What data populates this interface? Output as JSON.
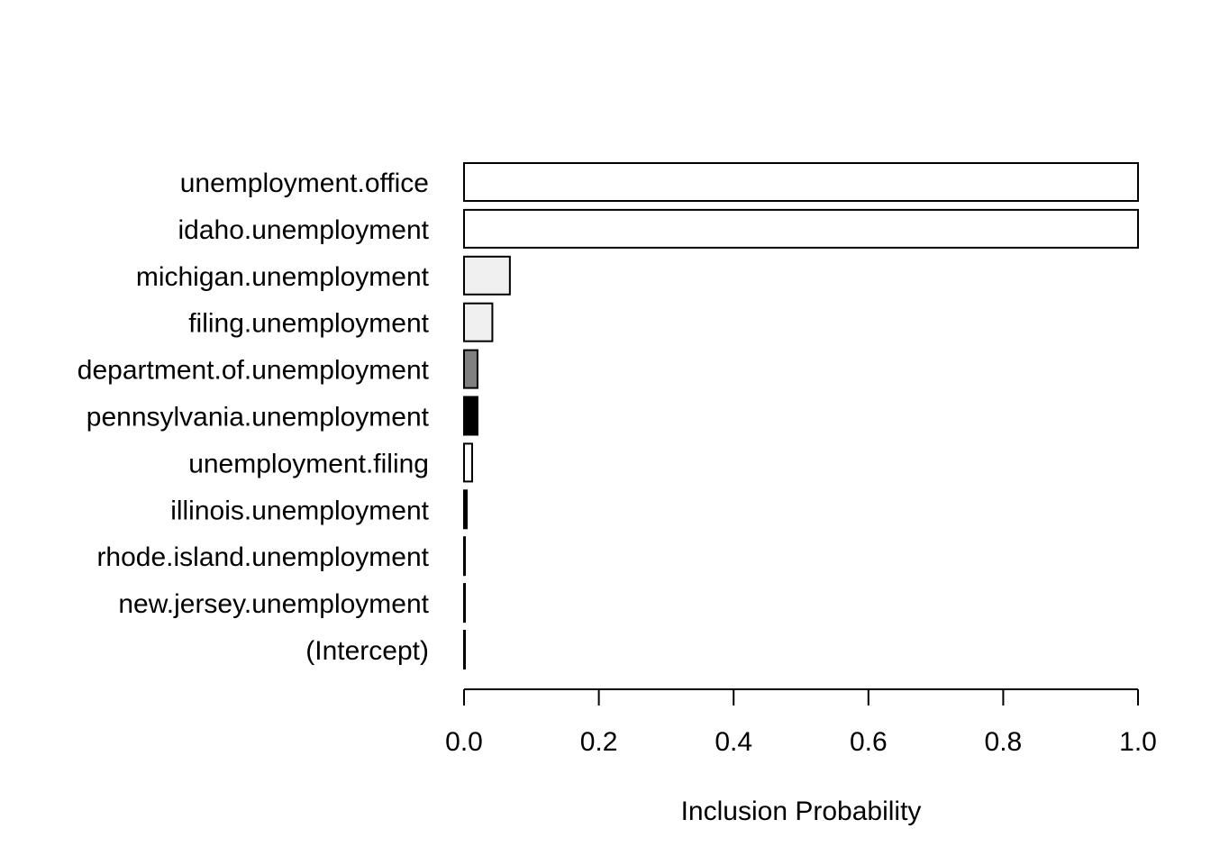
{
  "chart_data": {
    "type": "bar",
    "orientation": "horizontal",
    "categories": [
      "unemployment.office",
      "idaho.unemployment",
      "michigan.unemployment",
      "filing.unemployment",
      "department.of.unemployment",
      "pennsylvania.unemployment",
      "unemployment.filing",
      "illinois.unemployment",
      "rhode.island.unemployment",
      "new.jersey.unemployment",
      "(Intercept)"
    ],
    "values": [
      1.0,
      1.0,
      0.068,
      0.042,
      0.02,
      0.02,
      0.012,
      0.004,
      0.001,
      0.001,
      0.001
    ],
    "bar_colors": [
      "#ffffff",
      "#ffffff",
      "#f0f0f0",
      "#f0f0f0",
      "#808080",
      "#000000",
      "#ffffff",
      "#000000",
      "#ffffff",
      "#ffffff",
      "#ffffff"
    ],
    "xlabel": "Inclusion Probability",
    "ylabel": "",
    "title": "",
    "xlim": [
      0,
      1
    ],
    "xticks": [
      "0.0",
      "0.2",
      "0.4",
      "0.6",
      "0.8",
      "1.0"
    ],
    "xtick_values": [
      0,
      0.2,
      0.4,
      0.6,
      0.8,
      1.0
    ],
    "grid": false,
    "legend": "none"
  }
}
